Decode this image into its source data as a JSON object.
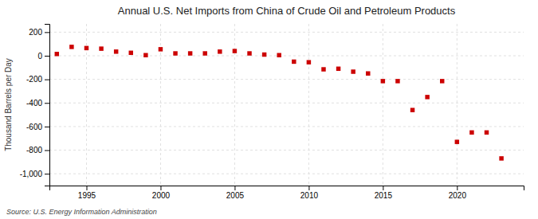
{
  "chart_data": {
    "type": "scatter",
    "title": "Annual U.S. Net Imports from China of Crude Oil and Petroleum Products",
    "ylabel": "Thousand Barrels per Day",
    "source": "Source: U.S. Energy Information Administration",
    "x": [
      1993,
      1994,
      1995,
      1996,
      1997,
      1998,
      1999,
      2000,
      2001,
      2002,
      2003,
      2004,
      2005,
      2006,
      2007,
      2008,
      2009,
      2010,
      2011,
      2012,
      2013,
      2014,
      2015,
      2016,
      2017,
      2018,
      2019,
      2020,
      2021,
      2022,
      2023
    ],
    "values": [
      15,
      75,
      65,
      60,
      35,
      25,
      5,
      55,
      20,
      20,
      20,
      35,
      40,
      20,
      10,
      5,
      -50,
      -55,
      -115,
      -110,
      -135,
      -150,
      -215,
      -215,
      -460,
      -350,
      -215,
      -730,
      -650,
      -650,
      -870
    ],
    "color": "#cc0000",
    "marker": "square",
    "xlim": [
      1992.5,
      2024.5
    ],
    "xticks": [
      1995,
      2000,
      2005,
      2010,
      2015,
      2020
    ],
    "ylim": [
      -1100,
      270
    ],
    "yticks": [
      {
        "value": -1000,
        "label": "-1,000"
      },
      -800,
      -600,
      -400,
      -200,
      0,
      200
    ],
    "grid": true
  }
}
